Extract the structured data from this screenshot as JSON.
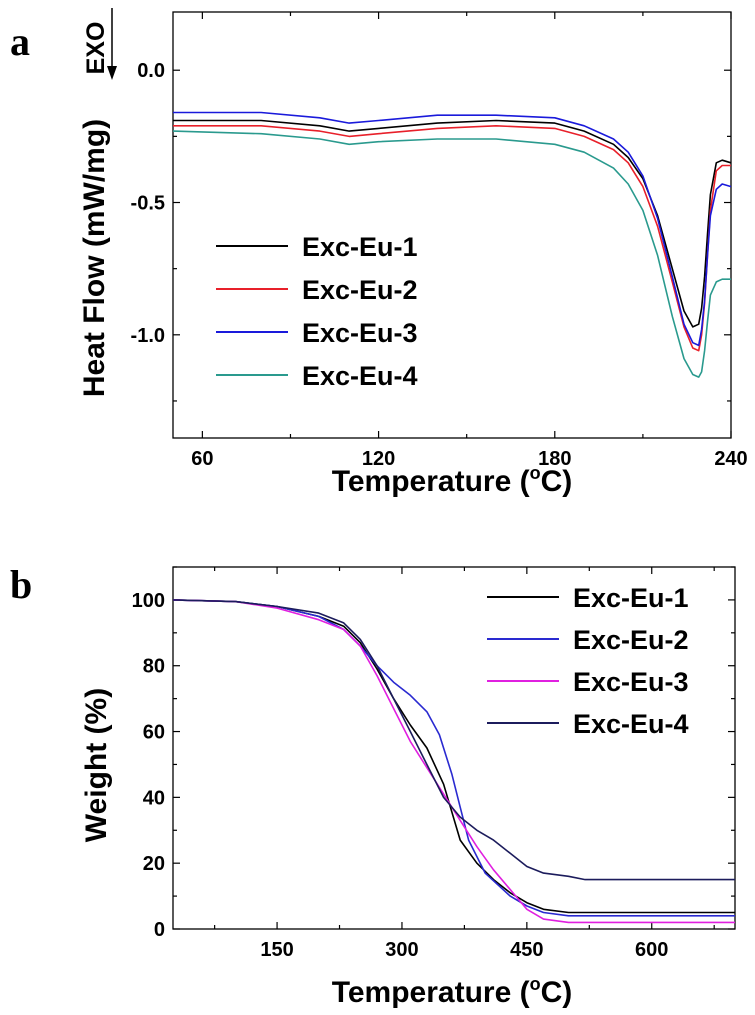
{
  "chart_data": [
    {
      "panel": "a",
      "type": "line",
      "title": "",
      "xlabel": "Temperature (°C)",
      "ylabel": "Heat Flow (mW/mg)",
      "annotation": "EXO",
      "xlim": [
        50,
        240
      ],
      "ylim": [
        -1.39,
        0.22
      ],
      "xticks": [
        60,
        120,
        180,
        240
      ],
      "yticks": [
        0.0,
        -0.5,
        -1.0
      ],
      "ytick_labels": [
        "0.0",
        "-0.5",
        "-1.0"
      ],
      "legend_position": "left",
      "series": [
        {
          "name": "Exc-Eu-1",
          "color": "#000000",
          "x": [
            50,
            80,
            100,
            110,
            120,
            140,
            160,
            180,
            190,
            200,
            205,
            210,
            215,
            220,
            224,
            227,
            229,
            230,
            231,
            232,
            233,
            235,
            237,
            240
          ],
          "y": [
            -0.19,
            -0.19,
            -0.21,
            -0.23,
            -0.22,
            -0.2,
            -0.19,
            -0.2,
            -0.23,
            -0.28,
            -0.33,
            -0.41,
            -0.55,
            -0.75,
            -0.91,
            -0.97,
            -0.96,
            -0.9,
            -0.78,
            -0.62,
            -0.47,
            -0.35,
            -0.34,
            -0.35
          ]
        },
        {
          "name": "Exc-Eu-2",
          "color": "#e8202a",
          "x": [
            50,
            80,
            100,
            110,
            120,
            140,
            160,
            180,
            190,
            200,
            205,
            210,
            215,
            220,
            224,
            227,
            229,
            230,
            231,
            232,
            233,
            235,
            237,
            240
          ],
          "y": [
            -0.21,
            -0.21,
            -0.23,
            -0.25,
            -0.24,
            -0.22,
            -0.21,
            -0.22,
            -0.25,
            -0.3,
            -0.35,
            -0.44,
            -0.59,
            -0.8,
            -0.97,
            -1.05,
            -1.06,
            -1.0,
            -0.88,
            -0.7,
            -0.53,
            -0.38,
            -0.36,
            -0.36
          ]
        },
        {
          "name": "Exc-Eu-3",
          "color": "#1a1adb",
          "x": [
            50,
            80,
            100,
            110,
            120,
            140,
            160,
            180,
            190,
            200,
            205,
            210,
            215,
            220,
            224,
            227,
            229,
            230,
            231,
            232,
            233,
            235,
            237,
            240
          ],
          "y": [
            -0.16,
            -0.16,
            -0.18,
            -0.2,
            -0.19,
            -0.17,
            -0.17,
            -0.18,
            -0.21,
            -0.26,
            -0.31,
            -0.4,
            -0.56,
            -0.78,
            -0.96,
            -1.03,
            -1.04,
            -0.98,
            -0.87,
            -0.7,
            -0.55,
            -0.45,
            -0.43,
            -0.44
          ]
        },
        {
          "name": "Exc-Eu-4",
          "color": "#2a9a8e",
          "x": [
            50,
            80,
            100,
            110,
            120,
            140,
            160,
            180,
            190,
            200,
            205,
            210,
            215,
            220,
            224,
            227,
            229,
            230,
            231,
            232,
            233,
            235,
            237,
            240
          ],
          "y": [
            -0.23,
            -0.24,
            -0.26,
            -0.28,
            -0.27,
            -0.26,
            -0.26,
            -0.28,
            -0.31,
            -0.37,
            -0.43,
            -0.53,
            -0.7,
            -0.93,
            -1.09,
            -1.15,
            -1.16,
            -1.14,
            -1.06,
            -0.95,
            -0.85,
            -0.8,
            -0.79,
            -0.79
          ]
        }
      ]
    },
    {
      "panel": "b",
      "type": "line",
      "title": "",
      "xlabel": "Temperature (°C)",
      "ylabel": "Weight (%)",
      "xlim": [
        25,
        700
      ],
      "ylim": [
        0,
        110
      ],
      "xticks": [
        150,
        300,
        450,
        600
      ],
      "yticks": [
        0,
        20,
        40,
        60,
        80,
        100
      ],
      "legend_position": "top-right",
      "series": [
        {
          "name": "Exc-Eu-1",
          "color": "#000000",
          "x": [
            25,
            100,
            150,
            200,
            230,
            250,
            270,
            290,
            310,
            330,
            350,
            370,
            390,
            410,
            430,
            450,
            470,
            500,
            600,
            700
          ],
          "y": [
            100,
            99.5,
            98,
            95,
            92,
            87,
            79,
            70,
            62,
            55,
            44,
            27,
            20,
            15,
            11,
            8,
            6,
            5,
            5,
            5
          ]
        },
        {
          "name": "Exc-Eu-2",
          "color": "#2a2ad0",
          "x": [
            25,
            100,
            150,
            200,
            230,
            250,
            270,
            290,
            310,
            330,
            345,
            360,
            370,
            380,
            400,
            430,
            450,
            470,
            500,
            600,
            700
          ],
          "y": [
            100,
            99.5,
            98,
            95,
            91,
            86,
            80,
            75,
            71,
            66,
            59,
            47,
            37,
            27,
            17,
            10,
            7,
            5,
            4,
            4,
            4
          ]
        },
        {
          "name": "Exc-Eu-3",
          "color": "#e020e0",
          "x": [
            25,
            100,
            150,
            200,
            230,
            250,
            270,
            290,
            310,
            330,
            350,
            370,
            390,
            410,
            430,
            450,
            470,
            500,
            600,
            700
          ],
          "y": [
            100,
            99.5,
            97.5,
            94,
            91,
            86,
            77,
            67,
            57,
            49,
            41,
            33,
            25,
            18,
            12,
            6,
            3,
            2,
            2,
            2
          ]
        },
        {
          "name": "Exc-Eu-4",
          "color": "#1c1c5c",
          "x": [
            25,
            100,
            150,
            200,
            230,
            250,
            270,
            290,
            310,
            330,
            350,
            370,
            390,
            410,
            430,
            450,
            470,
            500,
            520,
            600,
            700
          ],
          "y": [
            100,
            99.5,
            98,
            96,
            93,
            88,
            80,
            70,
            60,
            50,
            40,
            34,
            30,
            27,
            23,
            19,
            17,
            16,
            15,
            15,
            15
          ]
        }
      ]
    }
  ]
}
